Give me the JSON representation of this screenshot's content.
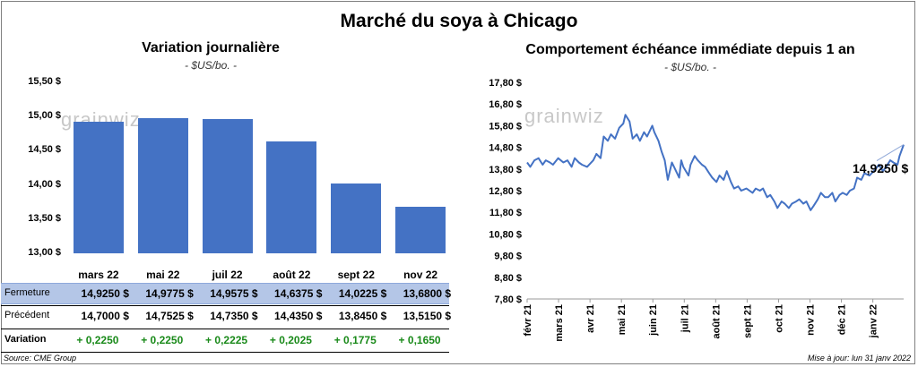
{
  "title": "Marché du soya à Chicago",
  "left_chart": {
    "title": "Variation  journalière",
    "unit": "- $US/bo. -",
    "watermark": "grainwiz"
  },
  "right_chart": {
    "title": "Comportement  échéance immédiate depuis 1 an",
    "unit": "- $US/bo. -",
    "watermark": "grainwiz",
    "last_label": "14,9250 $"
  },
  "table": {
    "rows": [
      {
        "label": "Fermeture",
        "values": [
          "14,9250  $",
          "14,9775  $",
          "14,9575  $",
          "14,6375  $",
          "14,0225  $",
          "13,6800  $"
        ]
      },
      {
        "label": "Précédent",
        "values": [
          "14,7000  $",
          "14,7525  $",
          "14,7350  $",
          "14,4350  $",
          "13,8450  $",
          "13,5150  $"
        ]
      },
      {
        "label": "Variation",
        "values": [
          "+ 0,2250",
          "+ 0,2250",
          "+ 0,2225",
          "+ 0,2025",
          "+ 0,1775",
          "+ 0,1650"
        ]
      }
    ]
  },
  "footer": {
    "source": "Source: CME Group",
    "update": "Mise à jour: lun 31 janv 2022"
  },
  "colors": {
    "bar": "#4472c4",
    "line": "#4472c4",
    "positive": "#1a8a1a"
  },
  "chart_data": [
    {
      "type": "bar",
      "title": "Variation  journalière",
      "ylabel": "- $US/bo. -",
      "categories": [
        "mars 22",
        "mai 22",
        "juil 22",
        "août 22",
        "sept 22",
        "nov 22"
      ],
      "values": [
        14.925,
        14.9775,
        14.9575,
        14.6375,
        14.0225,
        13.68
      ],
      "ylim": [
        13.0,
        15.5
      ],
      "yticks": [
        13.0,
        13.5,
        14.0,
        14.5,
        15.0,
        15.5
      ],
      "ytick_labels": [
        "13,00 $",
        "13,50 $",
        "14,00 $",
        "14,50 $",
        "15,00 $",
        "15,50 $"
      ]
    },
    {
      "type": "line",
      "title": "Comportement  échéance immédiate depuis 1 an",
      "ylabel": "- $US/bo. -",
      "ylim": [
        7.8,
        17.8
      ],
      "yticks": [
        7.8,
        8.8,
        9.8,
        10.8,
        11.8,
        12.8,
        13.8,
        14.8,
        15.8,
        16.8,
        17.8
      ],
      "ytick_labels": [
        "7,80 $",
        "8,80 $",
        "9,80 $",
        "10,80 $",
        "11,80 $",
        "12,80 $",
        "13,80 $",
        "14,80 $",
        "15,80 $",
        "16,80 $",
        "17,80 $"
      ],
      "xtick_labels": [
        "févr 21",
        "mars 21",
        "avr 21",
        "mai 21",
        "juin 21",
        "juil 21",
        "août 21",
        "sept 21",
        "oct 21",
        "nov 21",
        "déc 21",
        "janv 22"
      ],
      "annotation": "14,9250 $",
      "points": [
        [
          "2021-02-01",
          14.1
        ],
        [
          "2021-02-04",
          13.9
        ],
        [
          "2021-02-08",
          14.2
        ],
        [
          "2021-02-12",
          14.3
        ],
        [
          "2021-02-16",
          14.0
        ],
        [
          "2021-02-19",
          14.2
        ],
        [
          "2021-02-23",
          14.1
        ],
        [
          "2021-02-26",
          14.0
        ],
        [
          "2021-03-03",
          14.3
        ],
        [
          "2021-03-08",
          14.1
        ],
        [
          "2021-03-12",
          14.2
        ],
        [
          "2021-03-16",
          13.9
        ],
        [
          "2021-03-19",
          14.3
        ],
        [
          "2021-03-23",
          14.1
        ],
        [
          "2021-03-26",
          14.0
        ],
        [
          "2021-03-31",
          13.9
        ],
        [
          "2021-04-06",
          14.2
        ],
        [
          "2021-04-09",
          14.5
        ],
        [
          "2021-04-13",
          14.3
        ],
        [
          "2021-04-16",
          15.3
        ],
        [
          "2021-04-20",
          15.1
        ],
        [
          "2021-04-23",
          15.4
        ],
        [
          "2021-04-27",
          15.2
        ],
        [
          "2021-05-01",
          15.7
        ],
        [
          "2021-05-05",
          15.9
        ],
        [
          "2021-05-07",
          16.3
        ],
        [
          "2021-05-11",
          16.0
        ],
        [
          "2021-05-14",
          15.2
        ],
        [
          "2021-05-18",
          15.4
        ],
        [
          "2021-05-21",
          15.1
        ],
        [
          "2021-05-25",
          15.5
        ],
        [
          "2021-05-28",
          15.3
        ],
        [
          "2021-06-02",
          15.8
        ],
        [
          "2021-06-04",
          15.5
        ],
        [
          "2021-06-08",
          15.1
        ],
        [
          "2021-06-11",
          14.6
        ],
        [
          "2021-06-14",
          14.2
        ],
        [
          "2021-06-17",
          13.3
        ],
        [
          "2021-06-21",
          14.1
        ],
        [
          "2021-06-24",
          13.8
        ],
        [
          "2021-06-28",
          13.4
        ],
        [
          "2021-06-30",
          14.2
        ],
        [
          "2021-07-02",
          13.9
        ],
        [
          "2021-07-07",
          13.5
        ],
        [
          "2021-07-09",
          14.0
        ],
        [
          "2021-07-13",
          14.4
        ],
        [
          "2021-07-16",
          14.2
        ],
        [
          "2021-07-20",
          14.0
        ],
        [
          "2021-07-23",
          13.9
        ],
        [
          "2021-07-27",
          13.6
        ],
        [
          "2021-07-30",
          13.4
        ],
        [
          "2021-08-03",
          13.2
        ],
        [
          "2021-08-06",
          13.5
        ],
        [
          "2021-08-10",
          13.3
        ],
        [
          "2021-08-13",
          13.7
        ],
        [
          "2021-08-17",
          13.2
        ],
        [
          "2021-08-20",
          12.9
        ],
        [
          "2021-08-24",
          13.0
        ],
        [
          "2021-08-27",
          12.8
        ],
        [
          "2021-09-01",
          12.9
        ],
        [
          "2021-09-07",
          12.7
        ],
        [
          "2021-09-10",
          12.9
        ],
        [
          "2021-09-14",
          12.8
        ],
        [
          "2021-09-17",
          12.9
        ],
        [
          "2021-09-21",
          12.5
        ],
        [
          "2021-09-24",
          12.6
        ],
        [
          "2021-09-28",
          12.3
        ],
        [
          "2021-10-01",
          12.0
        ],
        [
          "2021-10-05",
          12.3
        ],
        [
          "2021-10-08",
          12.2
        ],
        [
          "2021-10-12",
          12.0
        ],
        [
          "2021-10-15",
          12.2
        ],
        [
          "2021-10-19",
          12.3
        ],
        [
          "2021-10-22",
          12.4
        ],
        [
          "2021-10-26",
          12.2
        ],
        [
          "2021-10-29",
          12.3
        ],
        [
          "2021-11-02",
          11.9
        ],
        [
          "2021-11-05",
          12.1
        ],
        [
          "2021-11-09",
          12.4
        ],
        [
          "2021-11-12",
          12.7
        ],
        [
          "2021-11-16",
          12.5
        ],
        [
          "2021-11-19",
          12.5
        ],
        [
          "2021-11-23",
          12.7
        ],
        [
          "2021-11-26",
          12.3
        ],
        [
          "2021-11-30",
          12.6
        ],
        [
          "2021-12-03",
          12.7
        ],
        [
          "2021-12-07",
          12.6
        ],
        [
          "2021-12-10",
          12.8
        ],
        [
          "2021-12-14",
          12.9
        ],
        [
          "2021-12-17",
          13.4
        ],
        [
          "2021-12-21",
          13.3
        ],
        [
          "2021-12-24",
          13.6
        ],
        [
          "2021-12-29",
          13.5
        ],
        [
          "2022-01-04",
          13.8
        ],
        [
          "2022-01-07",
          14.0
        ],
        [
          "2022-01-11",
          13.7
        ],
        [
          "2022-01-14",
          13.9
        ],
        [
          "2022-01-18",
          14.2
        ],
        [
          "2022-01-21",
          14.1
        ],
        [
          "2022-01-25",
          14.0
        ],
        [
          "2022-01-27",
          14.4
        ],
        [
          "2022-01-31",
          14.925
        ]
      ]
    }
  ]
}
